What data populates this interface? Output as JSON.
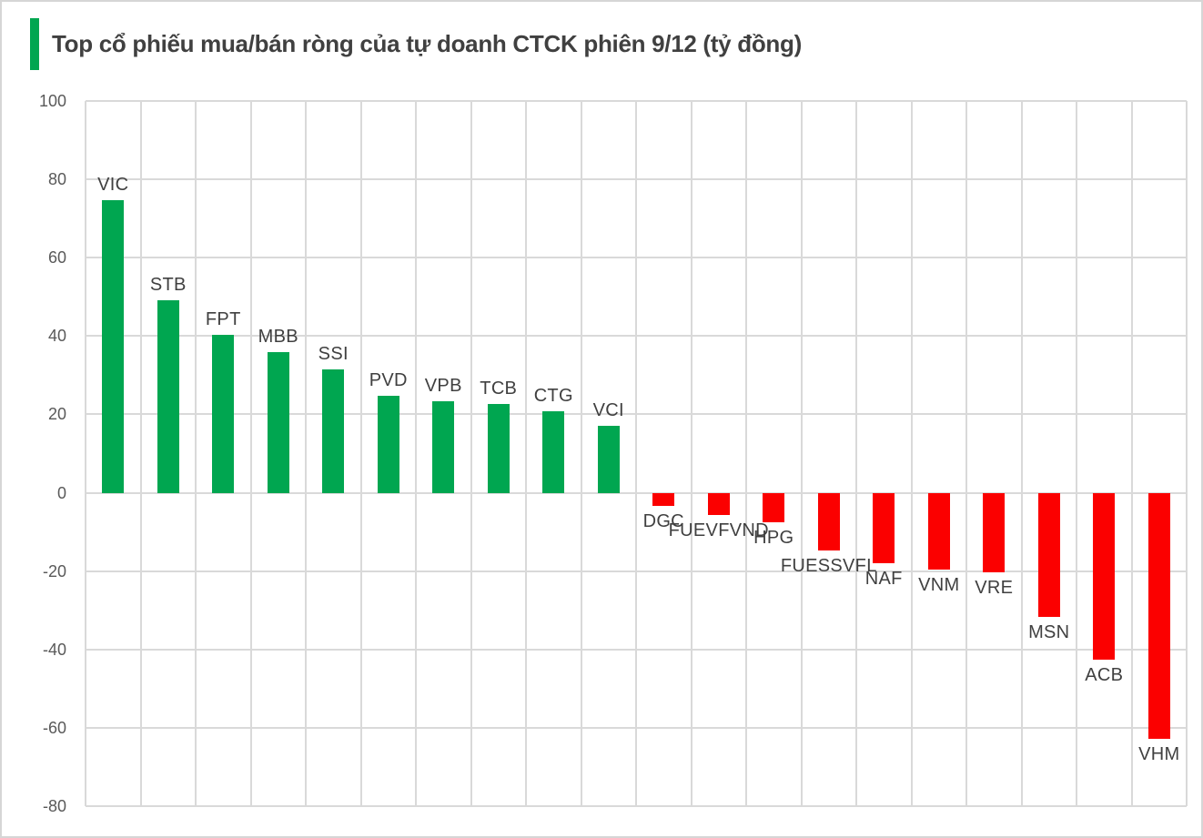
{
  "header": {
    "title": "Top cổ phiếu mua/bán ròng của tự doanh CTCK phiên 9/12 (tỷ đồng)",
    "accent_color": "#00a650",
    "title_color": "#404040"
  },
  "frame": {
    "border_color": "#d6d6d6",
    "background_color": "#ffffff"
  },
  "chart_data": {
    "type": "bar",
    "title": "Top cổ phiếu mua/bán ròng của tự doanh CTCK phiên 9/12 (tỷ đồng)",
    "unit": "tỷ đồng",
    "categories": [
      "VIC",
      "STB",
      "FPT",
      "MBB",
      "SSI",
      "PVD",
      "VPB",
      "TCB",
      "CTG",
      "VCI",
      "DGC",
      "FUEVFVND",
      "HPG",
      "FUESSVFL",
      "NAF",
      "VNM",
      "VRE",
      "MSN",
      "ACB",
      "VHM"
    ],
    "values": [
      74.6,
      49.1,
      40.2,
      36.0,
      31.6,
      24.8,
      23.3,
      22.7,
      20.8,
      17.1,
      -3.3,
      -5.7,
      -7.5,
      -14.7,
      -17.9,
      -19.7,
      -20.2,
      -31.7,
      -42.7,
      -62.8
    ],
    "positive_color": "#00a650",
    "negative_color": "#fb0000",
    "label_color": "#404040",
    "xlabel": "",
    "ylabel": "",
    "legend": "none",
    "axis": {
      "ymin": -80,
      "ymax": 100,
      "step": 20,
      "tick_labels": [
        "100",
        "80",
        "60",
        "40",
        "20",
        "0",
        "-20",
        "-40",
        "-60",
        "-80"
      ],
      "grid": true,
      "gridline_color": "#d9d9d9",
      "tick_color": "#595959"
    }
  }
}
